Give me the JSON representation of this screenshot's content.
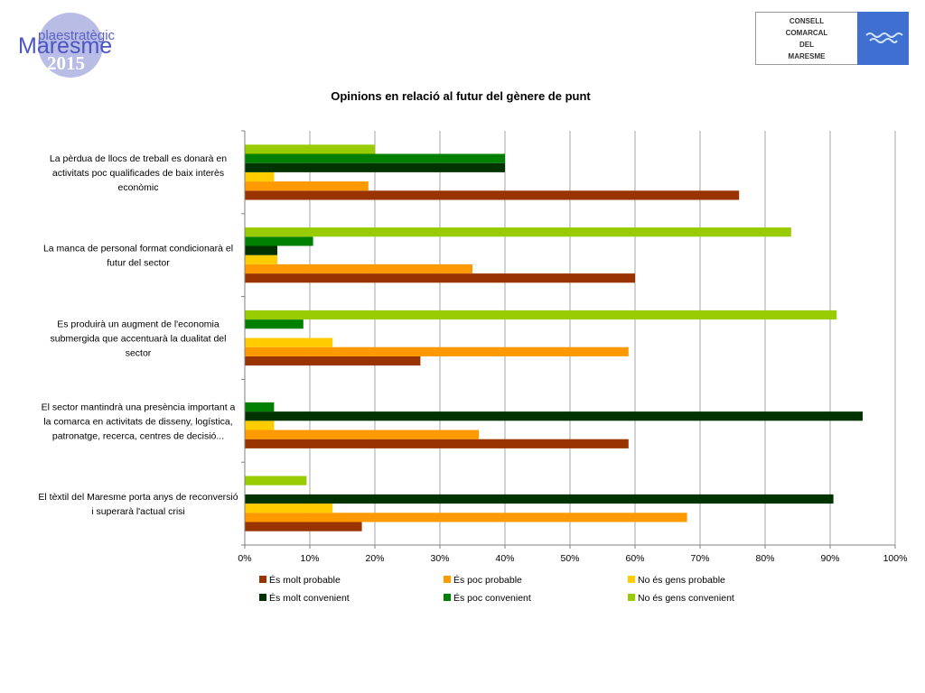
{
  "logo_left": {
    "line1": "plaestratègic",
    "line2": "Maresme",
    "line3": "2015"
  },
  "logo_right": {
    "lines": [
      "CONSELL",
      "COMARCAL",
      "DEL",
      "MARESME"
    ],
    "accent": "#3f6fd1"
  },
  "chart_data": {
    "type": "bar",
    "orientation": "horizontal",
    "title": "Opinions en relació al futur del gènere de punt",
    "categories": [
      "La pèrdua de llocs de treball es donarà en activitats poc qualificades de baix interès econòmic",
      "La manca de personal format condicionarà el futur del sector",
      "Es produirà un augment de l'economia submergida que accentuarà la dualitat del sector",
      "El sector mantindrà una presència important a la comarca en activitats de disseny, logística, patronatge, recerca, centres de decisió...",
      "El tèxtil del Maresme porta anys de reconversió i superarà l'actual crisi"
    ],
    "category_label_lines": [
      [
        "La pèrdua de llocs de treball es donarà en",
        "activitats poc qualificades de baix interès",
        "econòmic"
      ],
      [
        "La manca de personal format condicionarà el",
        "futur del sector"
      ],
      [
        "Es produirà un augment de l'economia",
        "submergida que accentuarà  la dualitat del",
        "sector"
      ],
      [
        "El sector mantindrà una presència important a",
        "la comarca en activitats de disseny, logística,",
        "patronatge, recerca, centres de decisió..."
      ],
      [
        "El tèxtil del Maresme porta anys de reconversió",
        "i superarà l'actual crisi"
      ]
    ],
    "series": [
      {
        "name": "És molt probable",
        "color": "#993300",
        "values": [
          76,
          60,
          27,
          59,
          18
        ]
      },
      {
        "name": "És poc probable",
        "color": "#ff9900",
        "values": [
          19,
          35,
          59,
          36,
          68
        ]
      },
      {
        "name": "No és gens probable",
        "color": "#ffcc00",
        "values": [
          4.5,
          5,
          13.5,
          4.5,
          13.5
        ]
      },
      {
        "name": "És molt convenient",
        "color": "#003300",
        "values": [
          40,
          5,
          0,
          95,
          90.5
        ]
      },
      {
        "name": "És poc convenient",
        "color": "#008000",
        "values": [
          40,
          10.5,
          9,
          4.5,
          0
        ]
      },
      {
        "name": "No és gens convenient",
        "color": "#99cc00",
        "values": [
          20,
          84,
          91,
          0,
          9.5
        ]
      }
    ],
    "xlim": [
      0,
      100
    ],
    "x_ticks": [
      "0%",
      "10%",
      "20%",
      "30%",
      "40%",
      "50%",
      "60%",
      "70%",
      "80%",
      "90%",
      "100%"
    ],
    "grid": true,
    "legend_position": "bottom"
  }
}
